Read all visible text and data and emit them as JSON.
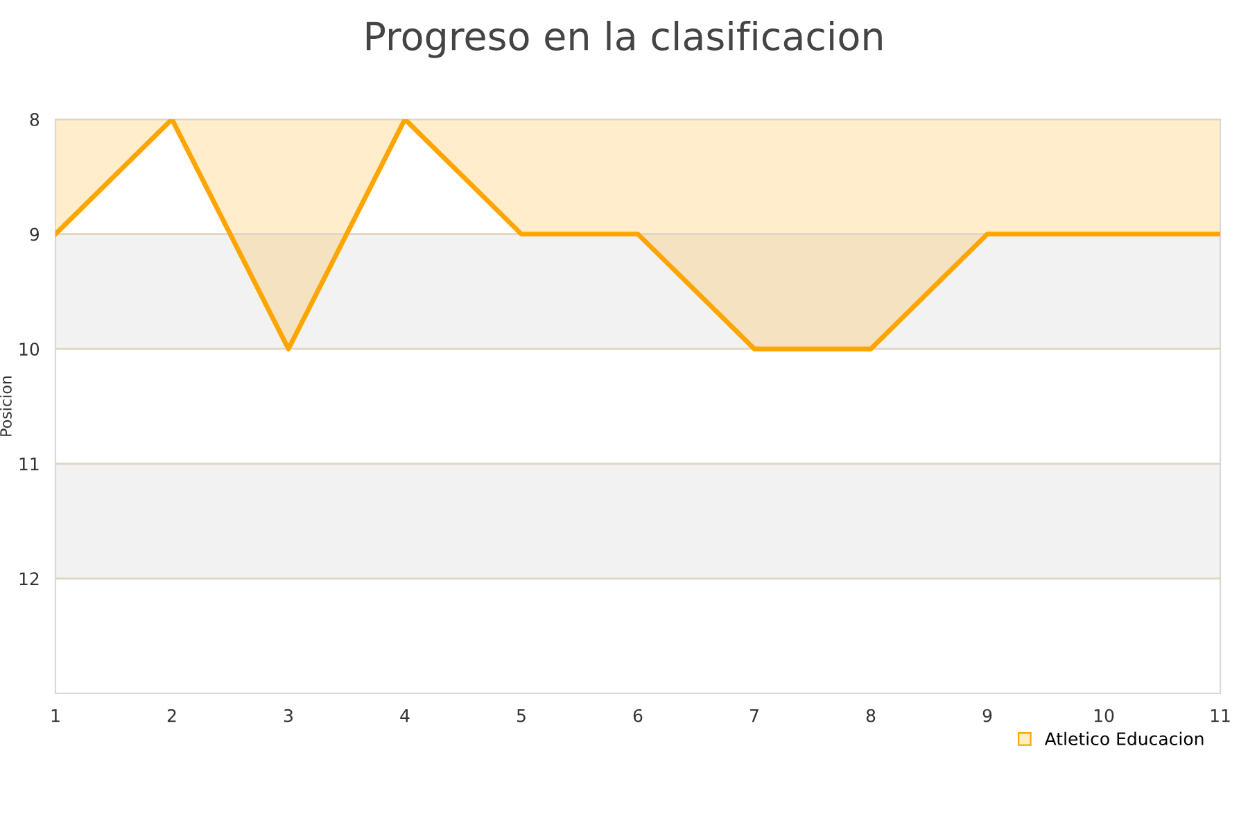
{
  "chart_data": {
    "type": "area",
    "title": "Progreso en la clasificacion",
    "ylabel": "Posicion",
    "x": [
      1,
      2,
      3,
      4,
      5,
      6,
      7,
      8,
      9,
      10,
      11
    ],
    "series": [
      {
        "name": "Atletico Educacion",
        "color": "#ffa500",
        "values": [
          9,
          8,
          10,
          8,
          9,
          9,
          10,
          10,
          9,
          9,
          9
        ]
      }
    ],
    "xlim": [
      1,
      11
    ],
    "xticks": [
      1,
      2,
      3,
      4,
      5,
      6,
      7,
      8,
      9,
      10,
      11
    ],
    "ylim": [
      13,
      8
    ],
    "yticks": [
      8,
      9,
      10,
      11,
      12
    ],
    "bands": [
      {
        "axis": "y",
        "from": 9,
        "to": 10,
        "color": "#f2f2f2"
      },
      {
        "axis": "y",
        "from": 11,
        "to": 12,
        "color": "#f2f2f2"
      }
    ],
    "grid": "y",
    "legend": "bottom right",
    "marker": "none",
    "line_style": "solid"
  }
}
